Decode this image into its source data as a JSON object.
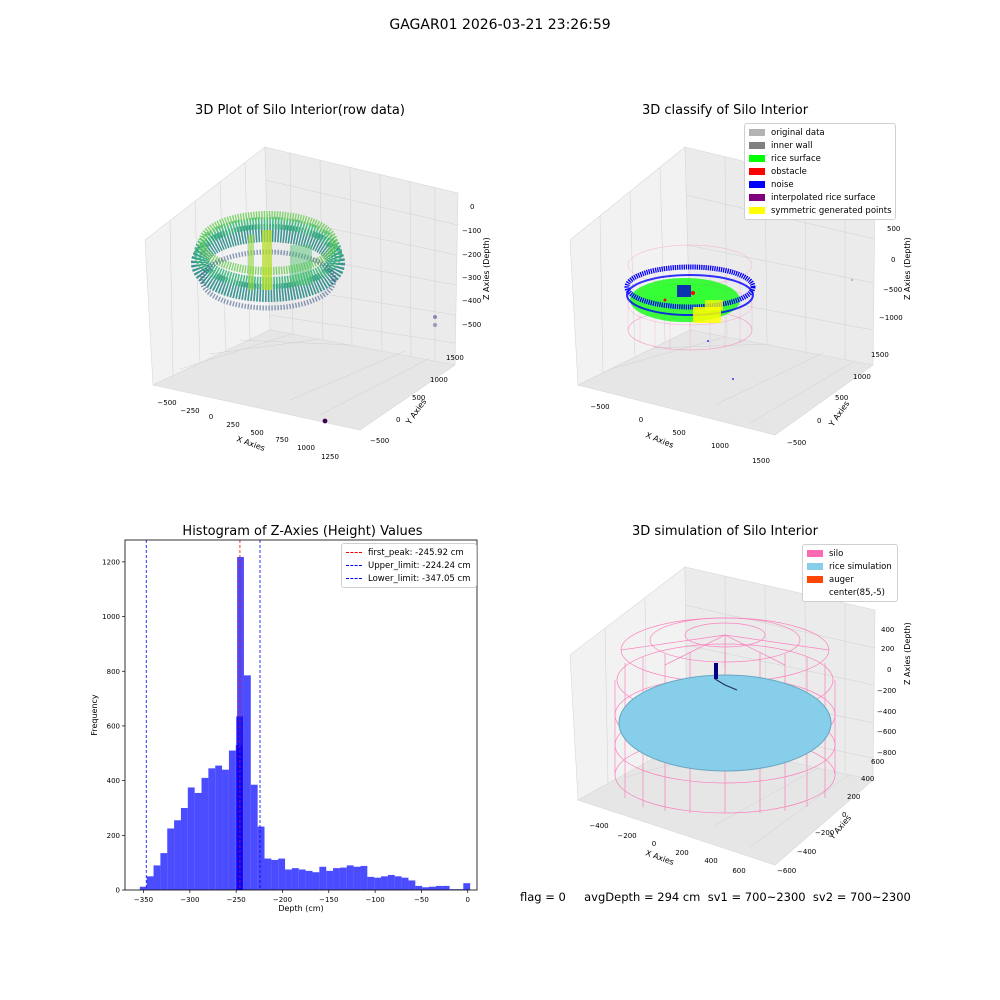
{
  "suptitle": "GAGAR01 2026-03-21 23:26:59",
  "panels": {
    "raw": {
      "title": "3D Plot of Silo Interior(row data)",
      "xlabel": "X Axies",
      "ylabel": "Y Axies",
      "zlabel": "Z Axies (Depth)",
      "xticks": [
        "−500",
        "−250",
        "0",
        "250",
        "500",
        "750",
        "1000",
        "1250"
      ],
      "yticks": [
        "−500",
        "0",
        "500",
        "1000",
        "1500"
      ],
      "zticks": [
        "0",
        "−100",
        "−200",
        "−300",
        "−400",
        "−500"
      ],
      "colormap": "viridis"
    },
    "classify": {
      "title": "3D classify of Silo Interior",
      "xlabel": "X Axies",
      "ylabel": "Y Axies",
      "zlabel": "Z Axies (Depth)",
      "xticks": [
        "−500",
        "0",
        "500",
        "1000",
        "1500"
      ],
      "yticks": [
        "−500",
        "0",
        "500",
        "1000",
        "1500"
      ],
      "zticks": [
        "500",
        "0",
        "−500",
        "−1000"
      ],
      "legend": [
        {
          "label": "original data",
          "color": "#b3b3b3"
        },
        {
          "label": "inner wall",
          "color": "#808080"
        },
        {
          "label": "rice surface",
          "color": "#00ff00"
        },
        {
          "label": "obstacle",
          "color": "#ff0000"
        },
        {
          "label": "noise",
          "color": "#0000ff"
        },
        {
          "label": "interpolated rice surface",
          "color": "#800080"
        },
        {
          "label": "symmetric generated points",
          "color": "#ffff00"
        }
      ]
    },
    "simulation": {
      "title": "3D simulation of Silo Interior",
      "xlabel": "X Axies",
      "ylabel": "Y Axies",
      "zlabel": "Z Axies (Depth)",
      "xticks": [
        "−400",
        "−200",
        "0",
        "200",
        "400",
        "600"
      ],
      "yticks": [
        "−600",
        "−400",
        "−200",
        "0",
        "200",
        "400",
        "600"
      ],
      "zticks": [
        "400",
        "200",
        "0",
        "−200",
        "−400",
        "−600",
        "−800"
      ],
      "legend": [
        {
          "label": "silo",
          "color": "#ff69b4"
        },
        {
          "label": "rice simulation",
          "color": "#87ceeb"
        },
        {
          "label": "auger",
          "color": "#ff4500"
        },
        {
          "label": "center(85,-5)",
          "color": ""
        }
      ]
    }
  },
  "status_text": "flag = 0     avgDepth = 294 cm  sv1 = 700~2300  sv2 = 700~2300",
  "chart_data": [
    {
      "type": "bar",
      "title": "Histogram of Z-Axies (Height) Values",
      "xlabel": "Depth (cm)",
      "ylabel": "Frequency",
      "xlim": [
        -370,
        10
      ],
      "ylim": [
        0,
        1280
      ],
      "xticks": [
        -350,
        -300,
        -250,
        -200,
        -150,
        -100,
        -50,
        0
      ],
      "yticks": [
        0,
        200,
        400,
        600,
        800,
        1000,
        1200
      ],
      "bin_width": 7.4,
      "bar_color": "#0000ff",
      "bins": [
        {
          "x": -354.0,
          "value": 12
        },
        {
          "x": -346.6,
          "value": 50
        },
        {
          "x": -339.2,
          "value": 90
        },
        {
          "x": -331.8,
          "value": 135
        },
        {
          "x": -324.4,
          "value": 225
        },
        {
          "x": -317.0,
          "value": 255
        },
        {
          "x": -309.6,
          "value": 300
        },
        {
          "x": -302.2,
          "value": 375
        },
        {
          "x": -294.8,
          "value": 355
        },
        {
          "x": -287.4,
          "value": 410
        },
        {
          "x": -280.0,
          "value": 445
        },
        {
          "x": -272.6,
          "value": 455
        },
        {
          "x": -265.2,
          "value": 440
        },
        {
          "x": -257.8,
          "value": 510
        },
        {
          "x": -250.4,
          "value": 530
        },
        {
          "x": -250.0,
          "value": 635
        },
        {
          "x": -249.0,
          "value": 1218
        },
        {
          "x": -241.6,
          "value": 785
        },
        {
          "x": -234.2,
          "value": 385
        },
        {
          "x": -226.8,
          "value": 232
        },
        {
          "x": -219.4,
          "value": 115
        },
        {
          "x": -212.0,
          "value": 110
        },
        {
          "x": -204.6,
          "value": 115
        },
        {
          "x": -197.2,
          "value": 75
        },
        {
          "x": -189.8,
          "value": 80
        },
        {
          "x": -182.4,
          "value": 75
        },
        {
          "x": -175.0,
          "value": 70
        },
        {
          "x": -167.6,
          "value": 65
        },
        {
          "x": -160.2,
          "value": 85
        },
        {
          "x": -152.8,
          "value": 70
        },
        {
          "x": -145.4,
          "value": 80
        },
        {
          "x": -138.0,
          "value": 82
        },
        {
          "x": -130.6,
          "value": 90
        },
        {
          "x": -123.2,
          "value": 85
        },
        {
          "x": -115.8,
          "value": 88
        },
        {
          "x": -108.4,
          "value": 48
        },
        {
          "x": -101.0,
          "value": 45
        },
        {
          "x": -93.6,
          "value": 50
        },
        {
          "x": -86.2,
          "value": 55
        },
        {
          "x": -78.8,
          "value": 50
        },
        {
          "x": -71.4,
          "value": 45
        },
        {
          "x": -64.0,
          "value": 35
        },
        {
          "x": -56.6,
          "value": 15
        },
        {
          "x": -49.2,
          "value": 10
        },
        {
          "x": -41.8,
          "value": 12
        },
        {
          "x": -34.4,
          "value": 15
        },
        {
          "x": -27.0,
          "value": 15
        },
        {
          "x": -19.6,
          "value": 3
        },
        {
          "x": -12.2,
          "value": 3
        },
        {
          "x": -4.8,
          "value": 25
        }
      ],
      "vlines": [
        {
          "x": -245.92,
          "label": "first_peak: -245.92 cm",
          "color": "#ff0000"
        },
        {
          "x": -224.24,
          "label": "Upper_limit: -224.24 cm",
          "color": "#0000ff"
        },
        {
          "x": -347.05,
          "label": "Lower_limit: -347.05 cm",
          "color": "#0000ff"
        }
      ]
    }
  ]
}
